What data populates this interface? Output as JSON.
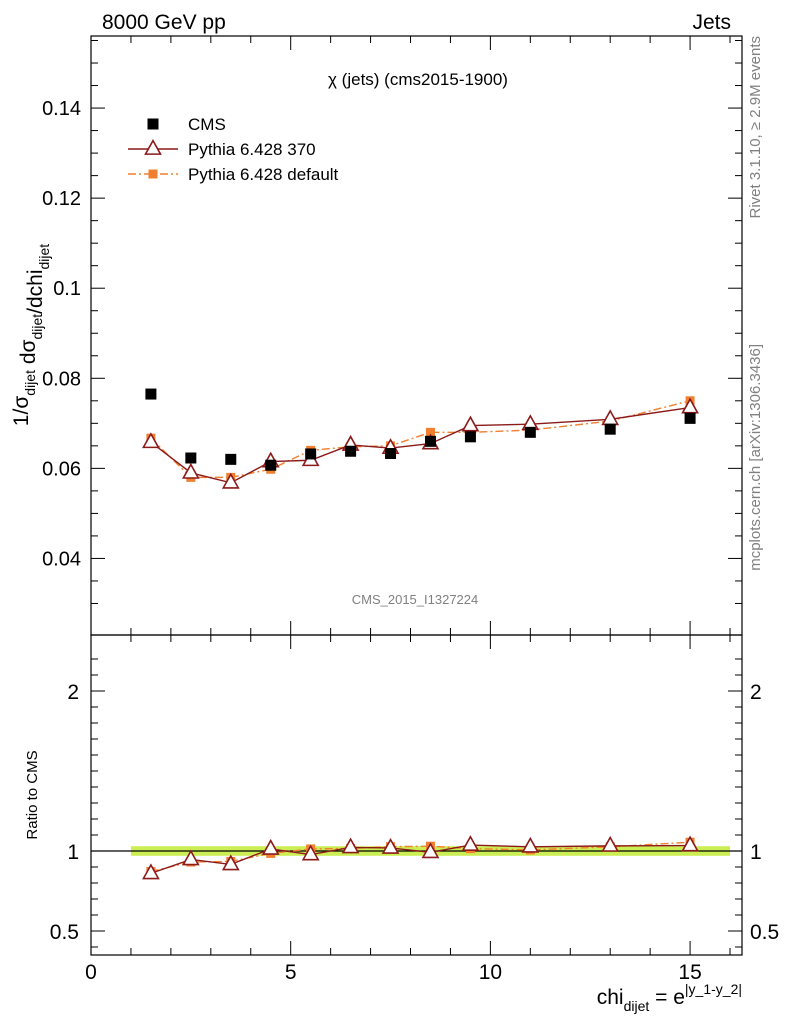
{
  "header": {
    "left": "8000 GeV pp",
    "right": "Jets"
  },
  "side": {
    "rivet": "Rivet 3.1.10, ≥ 2.9M events",
    "mcplots": "mcplots.cern.ch [arXiv:1306.3436]"
  },
  "analysis_tag": "CMS_2015_I1327224",
  "chart_data": [
    {
      "type": "scatter",
      "title": "χ (jets) (cms2015-1900)",
      "ylabel": "1/σ_dijet dσ_dijet/dchi_dijet",
      "xlim": [
        0,
        16.3
      ],
      "ylim": [
        0.023,
        0.156
      ],
      "yticks": [
        0.04,
        0.06,
        0.08,
        0.1,
        0.12,
        0.14
      ],
      "ytick_labels": [
        "0.04",
        "0.06",
        "0.08",
        "0.1",
        "0.12",
        "0.14"
      ],
      "x": [
        1.5,
        2.5,
        3.5,
        4.5,
        5.5,
        6.5,
        7.5,
        8.5,
        9.5,
        11,
        13,
        15
      ],
      "series": [
        {
          "name": "CMS",
          "color": "#000000",
          "marker": "square",
          "values": [
            0.0765,
            0.0623,
            0.062,
            0.0607,
            0.0632,
            0.0638,
            0.0633,
            0.066,
            0.067,
            0.068,
            0.0687,
            0.0711
          ]
        },
        {
          "name": "Pythia 6.428 370",
          "color": "#8b1a1a",
          "marker": "open-triangle",
          "line": "solid",
          "values": [
            0.0658,
            0.059,
            0.0568,
            0.0615,
            0.0618,
            0.0652,
            0.0645,
            0.0655,
            0.0695,
            0.0698,
            0.0709,
            0.0735
          ]
        },
        {
          "name": "Pythia 6.428 default",
          "color": "#f08030",
          "marker": "filled-square",
          "line": "dashdot",
          "values": [
            0.0667,
            0.058,
            0.058,
            0.0598,
            0.064,
            0.0648,
            0.065,
            0.068,
            0.068,
            0.0685,
            0.0705,
            0.075
          ]
        }
      ],
      "legend": "top-left"
    },
    {
      "type": "line",
      "ylabel": "Ratio to CMS",
      "xlabel": "chi_dijet = e^|y_1-y_2|",
      "xlim": [
        0,
        16.3
      ],
      "ylim": [
        0.35,
        2.35
      ],
      "xticks": [
        0,
        5,
        10,
        15
      ],
      "xtick_labels": [
        "0",
        "5",
        "10",
        "15"
      ],
      "yticks": [
        0.5,
        1,
        2
      ],
      "ytick_labels": [
        "0.5",
        "1",
        "2"
      ],
      "x": [
        1.5,
        2.5,
        3.5,
        4.5,
        5.5,
        6.5,
        7.5,
        8.5,
        9.5,
        11,
        13,
        15
      ],
      "band": {
        "x_range": [
          1,
          16
        ],
        "y_range": [
          0.97,
          1.03
        ],
        "color": "#ccee55"
      },
      "series": [
        {
          "name": "Pythia 6.428 370",
          "color": "#8b1a1a",
          "values": [
            0.86,
            0.947,
            0.916,
            1.013,
            0.978,
            1.022,
            1.019,
            0.992,
            1.037,
            1.026,
            1.032,
            1.034
          ]
        },
        {
          "name": "Pythia 6.428 default",
          "color": "#f08030",
          "values": [
            0.872,
            0.931,
            0.935,
            0.985,
            1.013,
            1.016,
            1.027,
            1.03,
            1.015,
            1.007,
            1.026,
            1.055
          ]
        }
      ]
    }
  ]
}
